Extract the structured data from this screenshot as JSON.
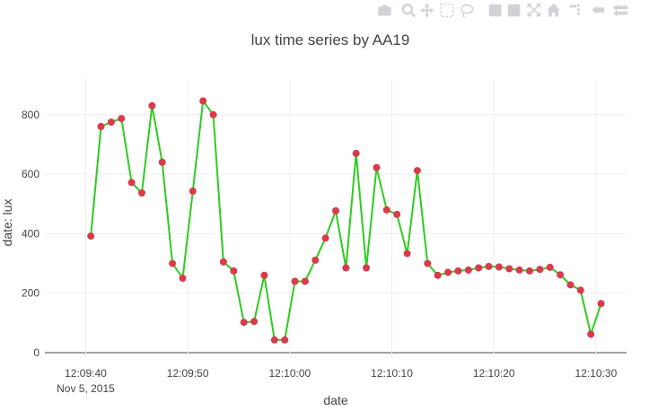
{
  "modebar": {
    "icons": [
      "camera-icon",
      "zoom-icon",
      "pan-icon",
      "box-select-icon",
      "lasso-select-icon",
      "zoom-in-icon",
      "zoom-out-icon",
      "autoscale-icon",
      "reset-axes-icon",
      "spike-lines-icon",
      "hover-closest-icon",
      "hover-compare-icon"
    ]
  },
  "colors": {
    "line": "#2ecc1f",
    "marker": "#d93a4c",
    "grid": "#eeeeee",
    "zeroline": "#444444",
    "text": "#444444"
  },
  "chart_data": {
    "type": "line",
    "title": "lux time series by AA19",
    "xlabel": "date",
    "ylabel": "date: lux",
    "x_start": "2015-11-05T12:09:40",
    "x_ticks": [
      "12:09:40",
      "12:09:50",
      "12:10:00",
      "12:10:10",
      "12:10:20",
      "12:10:30"
    ],
    "x_tick_sublabel": "Nov 5, 2015",
    "xlim": [
      "2015-11-05T12:09:36",
      "2015-11-05T12:10:33"
    ],
    "y_ticks": [
      0,
      200,
      400,
      600,
      800
    ],
    "ylim": [
      -15,
      920
    ],
    "grid": true,
    "legend": "none",
    "series": [
      {
        "mode": "lines+markers",
        "x": [
          "12:09:40.5",
          "12:09:41.5",
          "12:09:42.5",
          "12:09:43.5",
          "12:09:44.5",
          "12:09:45.5",
          "12:09:46.5",
          "12:09:47.5",
          "12:09:48.5",
          "12:09:49.5",
          "12:09:50.5",
          "12:09:51.5",
          "12:09:52.5",
          "12:09:53.5",
          "12:09:54.5",
          "12:09:55.5",
          "12:09:56.5",
          "12:09:57.5",
          "12:09:58.5",
          "12:09:59.5",
          "12:10:00.5",
          "12:10:01.5",
          "12:10:02.5",
          "12:10:03.5",
          "12:10:04.5",
          "12:10:05.5",
          "12:10:06.5",
          "12:10:07.5",
          "12:10:08.5",
          "12:10:09.5",
          "12:10:10.5",
          "12:10:11.5",
          "12:10:12.5",
          "12:10:13.5",
          "12:10:14.5",
          "12:10:15.5",
          "12:10:16.5",
          "12:10:17.5",
          "12:10:18.5",
          "12:10:19.5",
          "12:10:20.5",
          "12:10:21.5",
          "12:10:22.5",
          "12:10:23.5",
          "12:10:24.5",
          "12:10:25.5",
          "12:10:26.5",
          "12:10:27.5",
          "12:10:28.5",
          "12:10:29.5",
          "12:10:30.5"
        ],
        "y": [
          392,
          760,
          775,
          787,
          572,
          537,
          830,
          640,
          300,
          250,
          543,
          846,
          800,
          305,
          275,
          102,
          105,
          260,
          43,
          43,
          240,
          240,
          311,
          385,
          477,
          285,
          670,
          285,
          622,
          480,
          465,
          333,
          612,
          300,
          260,
          270,
          275,
          278,
          285,
          290,
          288,
          282,
          278,
          275,
          280,
          287,
          262,
          228,
          210,
          62,
          165
        ]
      }
    ]
  }
}
